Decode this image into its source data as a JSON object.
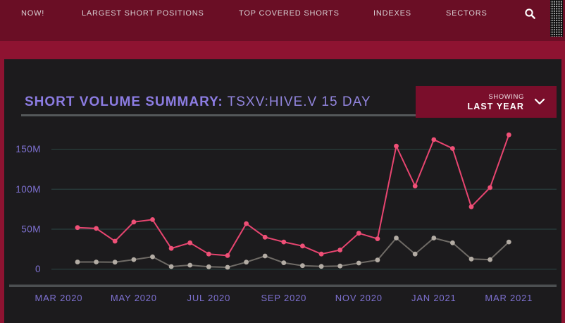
{
  "nav": {
    "items": [
      {
        "label": "NOW!"
      },
      {
        "label": "LARGEST SHORT POSITIONS"
      },
      {
        "label": "TOP COVERED SHORTS"
      },
      {
        "label": "INDEXES"
      },
      {
        "label": "SECTORS"
      }
    ],
    "search_icon": "magnifier"
  },
  "panel": {
    "title_label": "SHORT VOLUME SUMMARY:",
    "title_value": "TSXV:HIVE.V 15 DAY",
    "dropdown": {
      "showing_label": "SHOWING",
      "value": "LAST YEAR",
      "icon": "chevron-down"
    }
  },
  "chart_data": {
    "type": "line",
    "title": "SHORT VOLUME SUMMARY: TSXV:HIVE.V 15 DAY",
    "y_unit": "millions of shares",
    "ylim": [
      0,
      175
    ],
    "grid": true,
    "legend": false,
    "y_ticks": [
      {
        "value": 0,
        "label": "0"
      },
      {
        "value": 50,
        "label": "50M"
      },
      {
        "value": 100,
        "label": "100M"
      },
      {
        "value": 150,
        "label": "150M"
      }
    ],
    "x_tick_labels": [
      "MAR 2020",
      "MAY 2020",
      "JUL 2020",
      "SEP 2020",
      "NOV 2020",
      "JAN 2021",
      "MAR 2021"
    ],
    "x_tick_point_index": [
      -1,
      3,
      7,
      11,
      15,
      19,
      23
    ],
    "series": [
      {
        "name": "gray",
        "line_color": "#6f6b66",
        "dot_color": "#b3aca4",
        "values": [
          9,
          9,
          8.8,
          12,
          15.5,
          3.3,
          5,
          3,
          2.4,
          8.8,
          16.5,
          8,
          4.4,
          3.5,
          4,
          7.7,
          11.5,
          39,
          19,
          39,
          33,
          12.7,
          12,
          34
        ]
      },
      {
        "name": "pink",
        "line_color": "#e84570",
        "dot_color": "#ef5077",
        "values": [
          52,
          51,
          35,
          59,
          62,
          26,
          33,
          19,
          17,
          57,
          40,
          34,
          29,
          19,
          24,
          45,
          38,
          154,
          104,
          162,
          151,
          78,
          102,
          168
        ]
      }
    ]
  },
  "colors": {
    "nav_bg": "#6a0e25",
    "page_bg": "#8e1331",
    "panel_bg": "#1c1b1d",
    "title_purple": "#8c7ce2",
    "tick_purple": "#7e71d1",
    "grid_teal": "#2c4946",
    "axis_bar_gray": "#4c4f51",
    "dropdown_bg": "#7a0e2b",
    "pink_line": "#e84570",
    "gray_dot": "#b3aca4"
  }
}
